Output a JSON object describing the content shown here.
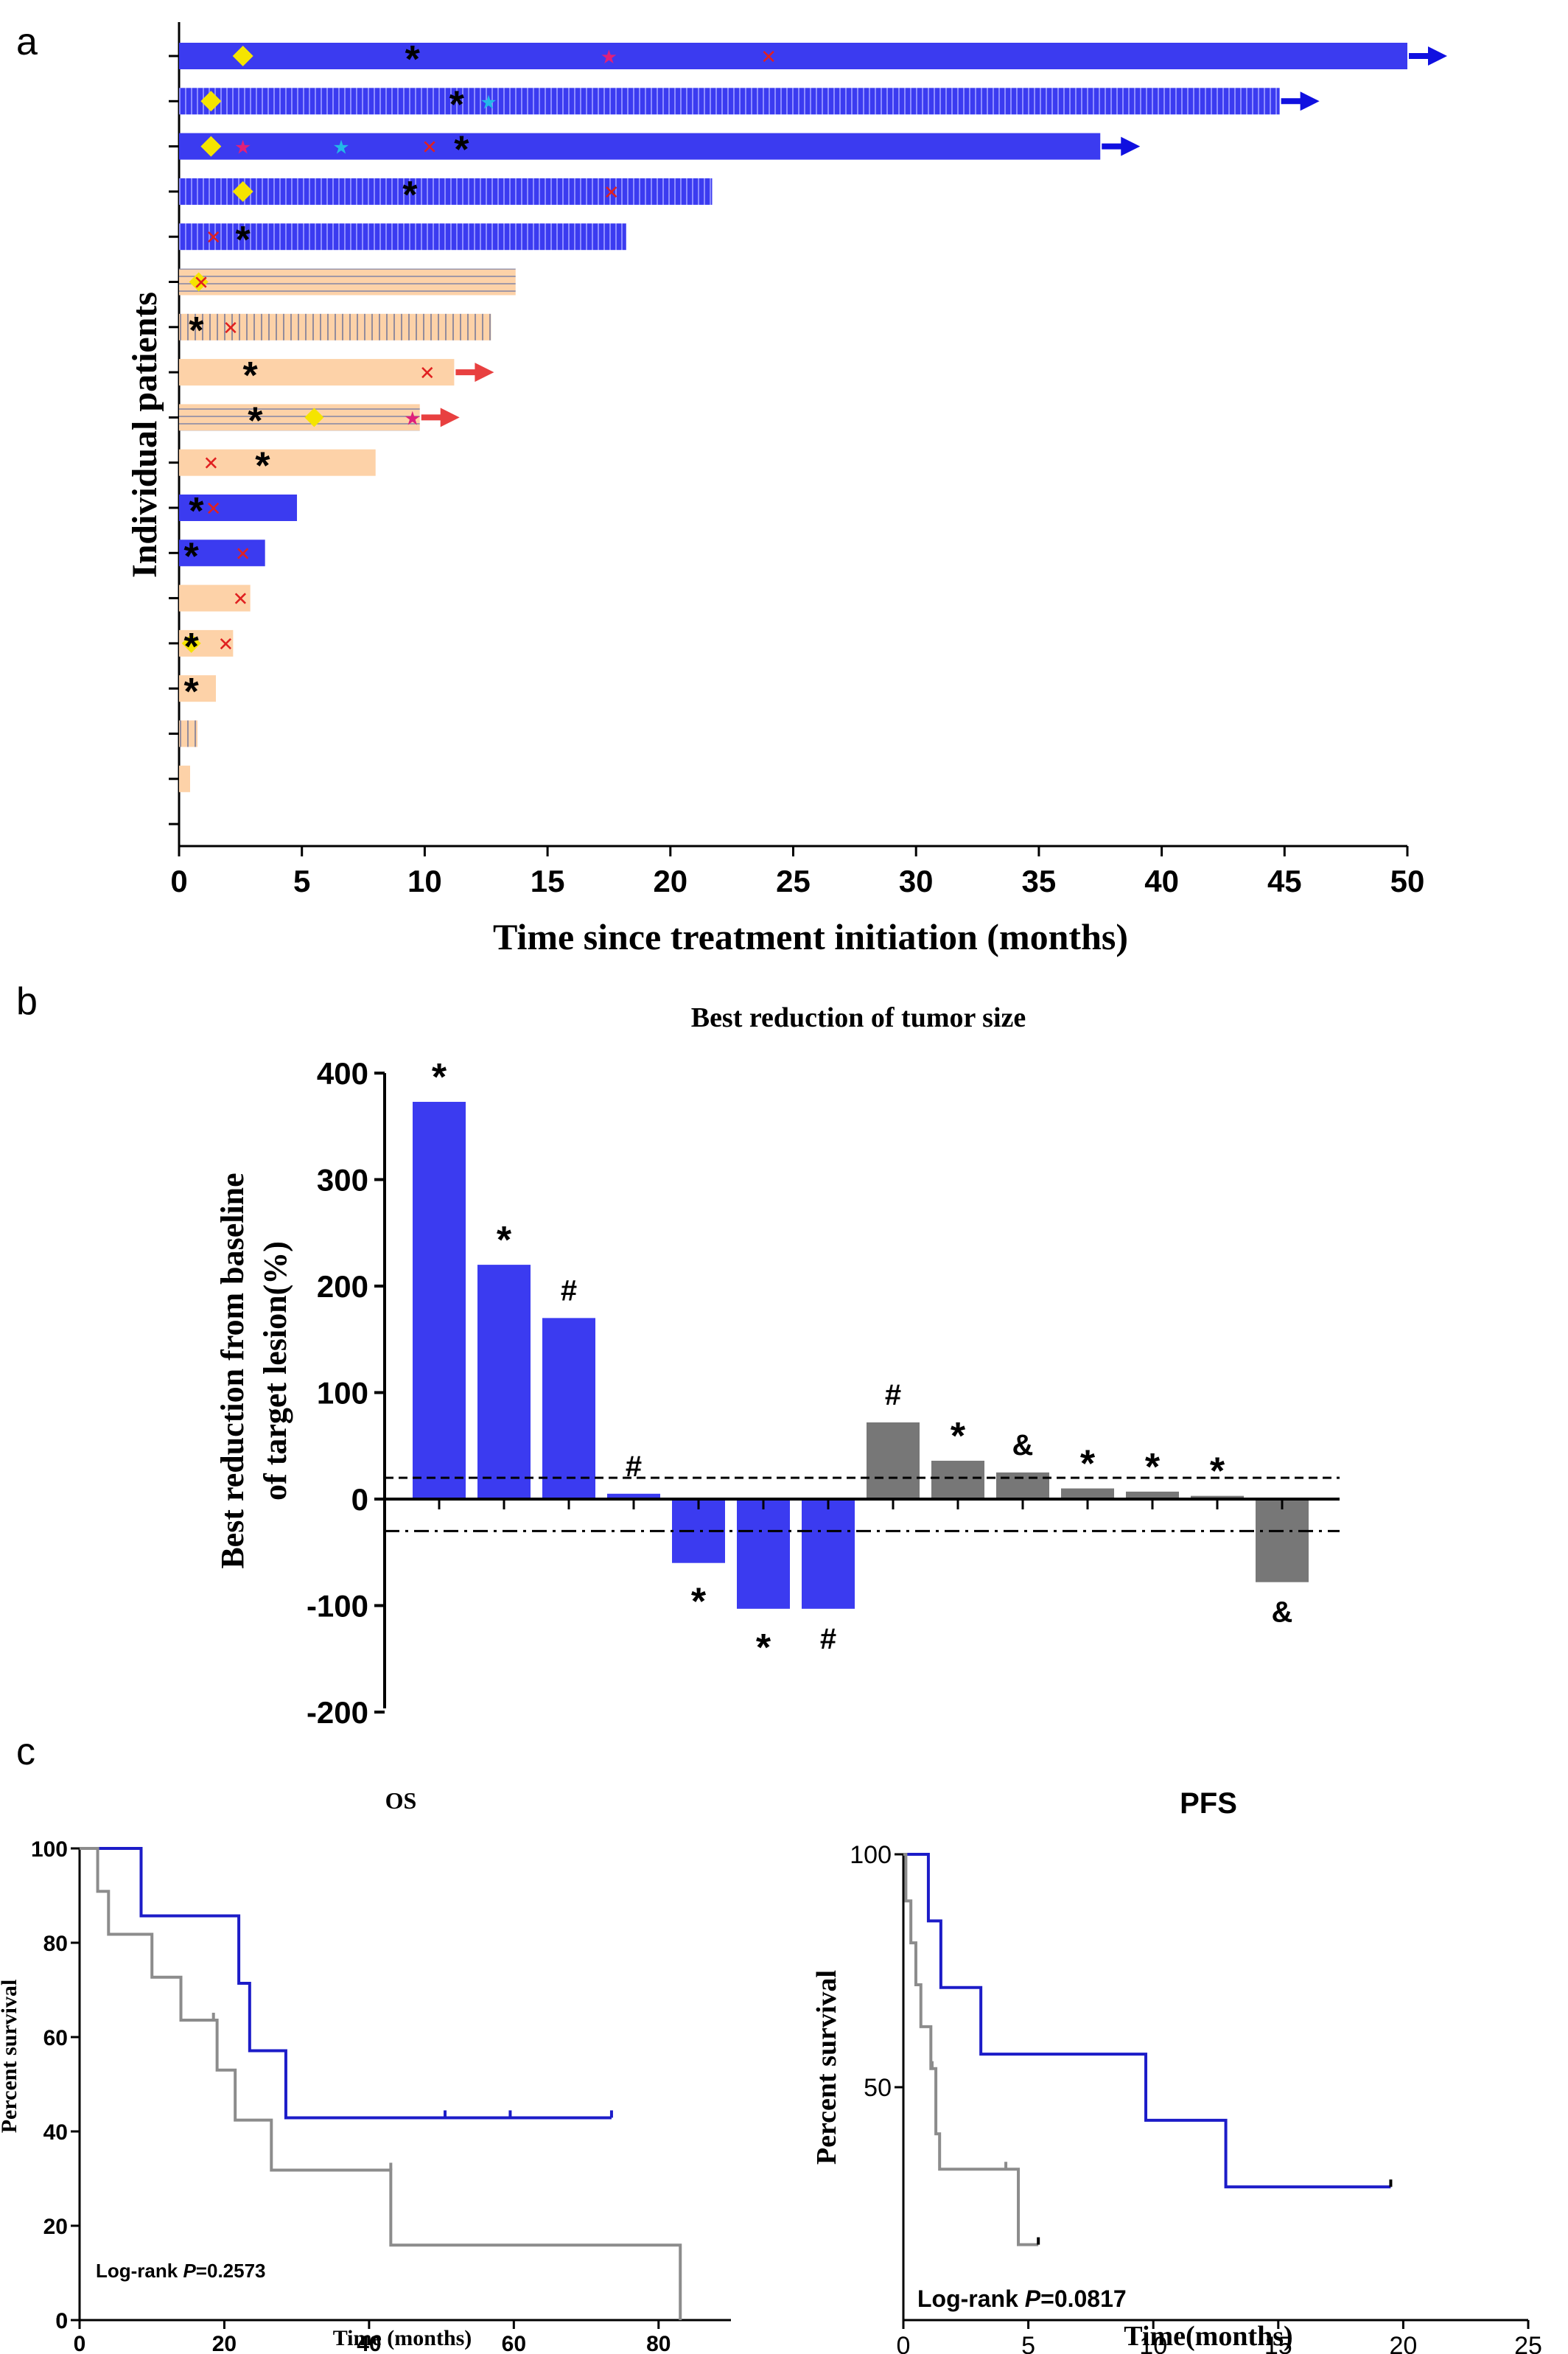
{
  "panel_labels": {
    "a": "a",
    "b": "b",
    "c": "c"
  },
  "colors": {
    "blue": "#3b3bf0",
    "blue_dark": "#1010e0",
    "peach": "#fdd2a8",
    "gray_bar": "#777777",
    "red_x": "#e02020",
    "pink_star": "#e0207a",
    "cyan_star": "#22b8e8",
    "yellow_diamond": "#f5e400",
    "arrow_red": "#e84040",
    "km_blue": "#1c1cc8",
    "km_gray": "#8c8c8c"
  },
  "chart_data": [
    {
      "id": "a",
      "type": "bar",
      "orientation": "horizontal",
      "xlabel": "Time since treatment initiation (months)",
      "ylabel": "Individual patients",
      "xlim": [
        0,
        50
      ],
      "xticks": [
        0,
        5,
        10,
        15,
        20,
        25,
        30,
        35,
        40,
        45,
        50
      ],
      "patients": [
        {
          "value": 50,
          "color": "blue",
          "hatch": "none",
          "arrow": true,
          "markers": [
            {
              "type": "diamond",
              "x": 2.6
            },
            {
              "type": "asterisk",
              "x": 9.5
            },
            {
              "type": "pink_star",
              "x": 17.5
            },
            {
              "type": "red_x",
              "x": 24.0
            }
          ]
        },
        {
          "value": 44.8,
          "color": "blue",
          "hatch": "vertical",
          "arrow": true,
          "markers": [
            {
              "type": "diamond",
              "x": 1.3
            },
            {
              "type": "asterisk",
              "x": 11.3
            },
            {
              "type": "cyan_star",
              "x": 12.6
            }
          ]
        },
        {
          "value": 37.5,
          "color": "blue",
          "hatch": "none",
          "arrow": true,
          "markers": [
            {
              "type": "diamond",
              "x": 1.3
            },
            {
              "type": "pink_star",
              "x": 2.6
            },
            {
              "type": "cyan_star",
              "x": 6.6
            },
            {
              "type": "red_x",
              "x": 10.2
            },
            {
              "type": "asterisk",
              "x": 11.5
            }
          ]
        },
        {
          "value": 21.7,
          "color": "blue",
          "hatch": "vertical",
          "arrow": false,
          "markers": [
            {
              "type": "diamond",
              "x": 2.6
            },
            {
              "type": "asterisk",
              "x": 9.4
            },
            {
              "type": "red_x",
              "x": 17.6
            }
          ]
        },
        {
          "value": 18.2,
          "color": "blue",
          "hatch": "vertical",
          "arrow": false,
          "markers": [
            {
              "type": "red_x",
              "x": 1.4
            },
            {
              "type": "asterisk",
              "x": 2.6
            }
          ]
        },
        {
          "value": 13.7,
          "color": "peach",
          "hatch": "horizontal",
          "arrow": false,
          "markers": [
            {
              "type": "yellow_circle",
              "x": 0.8
            },
            {
              "type": "red_x",
              "x": 0.9
            }
          ]
        },
        {
          "value": 12.7,
          "color": "peach",
          "hatch": "vertical",
          "arrow": false,
          "markers": [
            {
              "type": "asterisk",
              "x": 0.7
            },
            {
              "type": "red_x",
              "x": 2.1
            }
          ]
        },
        {
          "value": 11.2,
          "color": "peach",
          "hatch": "none",
          "arrow": true,
          "markers": [
            {
              "type": "asterisk",
              "x": 2.9
            },
            {
              "type": "red_x",
              "x": 10.1
            }
          ]
        },
        {
          "value": 9.8,
          "color": "peach",
          "hatch": "horizontal",
          "arrow": true,
          "markers": [
            {
              "type": "asterisk",
              "x": 3.1
            },
            {
              "type": "yellow_circle",
              "x": 5.5
            },
            {
              "type": "pink_star",
              "x": 9.5
            }
          ]
        },
        {
          "value": 8.0,
          "color": "peach",
          "hatch": "none",
          "arrow": false,
          "markers": [
            {
              "type": "red_x",
              "x": 1.3
            },
            {
              "type": "asterisk",
              "x": 3.4
            }
          ]
        },
        {
          "value": 4.8,
          "color": "blue",
          "hatch": "none",
          "arrow": false,
          "markers": [
            {
              "type": "asterisk",
              "x": 0.7
            },
            {
              "type": "red_x",
              "x": 1.4
            }
          ]
        },
        {
          "value": 3.5,
          "color": "blue",
          "hatch": "none",
          "arrow": false,
          "markers": [
            {
              "type": "asterisk",
              "x": 0.5
            },
            {
              "type": "red_x",
              "x": 2.6
            }
          ]
        },
        {
          "value": 2.9,
          "color": "peach",
          "hatch": "none",
          "arrow": false,
          "markers": [
            {
              "type": "red_x",
              "x": 2.5
            }
          ]
        },
        {
          "value": 2.2,
          "color": "peach",
          "hatch": "none",
          "arrow": false,
          "markers": [
            {
              "type": "yellow_circle",
              "x": 0.5
            },
            {
              "type": "asterisk",
              "x": 0.5
            },
            {
              "type": "red_x",
              "x": 1.9
            }
          ]
        },
        {
          "value": 1.5,
          "color": "peach",
          "hatch": "none",
          "arrow": false,
          "markers": [
            {
              "type": "asterisk",
              "x": 0.5
            }
          ]
        },
        {
          "value": 0.75,
          "color": "peach",
          "hatch": "vertical",
          "arrow": false,
          "markers": []
        },
        {
          "value": 0.45,
          "color": "peach",
          "hatch": "none",
          "arrow": false,
          "markers": []
        },
        {
          "value": 0,
          "color": "peach",
          "hatch": "none",
          "arrow": false,
          "markers": []
        }
      ]
    },
    {
      "id": "b",
      "type": "bar",
      "title": "Best reduction of tumor size",
      "ylabel_line1": "Best reduction from baseline",
      "ylabel_line2": "of target lesion(%)",
      "ylim": [
        -200,
        400
      ],
      "yticks": [
        -200,
        -100,
        0,
        100,
        200,
        300,
        400
      ],
      "reference_lines": [
        20,
        -30
      ],
      "values": [
        373,
        220,
        170,
        5,
        -60,
        -103,
        -103,
        72,
        36,
        25,
        10,
        7,
        3,
        -78
      ],
      "colors": [
        "blue",
        "blue",
        "blue",
        "blue",
        "blue",
        "blue",
        "blue",
        "gray",
        "gray",
        "gray",
        "gray",
        "gray",
        "gray",
        "gray"
      ],
      "labels": [
        "*",
        "*",
        "#",
        "#",
        "*",
        "*",
        "#",
        "#",
        "*",
        "&",
        "*",
        "*",
        "*",
        "&"
      ]
    },
    {
      "id": "c-os",
      "type": "line",
      "subtype": "kaplan-meier",
      "title": "OS",
      "xlabel": "Time (months)",
      "ylabel": "Percent survival",
      "xlim": [
        0,
        90
      ],
      "xticks": [
        0,
        20,
        40,
        60,
        80
      ],
      "ylim": [
        0,
        100
      ],
      "yticks": [
        0,
        20,
        40,
        60,
        80,
        100
      ],
      "annotation": "Log-rank P=0.2573",
      "series": [
        {
          "color": "km_blue",
          "x": [
            0,
            8.5,
            8.5,
            22,
            22,
            23.5,
            23.5,
            28.5,
            28.5,
            73.5
          ],
          "y": [
            100,
            100,
            85.7,
            85.7,
            71.4,
            71.4,
            57.1,
            57.1,
            42.9,
            42.9
          ],
          "censors": [
            [
              50.5,
              42.9
            ],
            [
              59.5,
              42.9
            ],
            [
              73.5,
              42.9
            ]
          ]
        },
        {
          "color": "km_gray",
          "x": [
            0,
            2.5,
            2.5,
            4,
            4,
            10,
            10,
            14,
            14,
            19,
            19,
            21.5,
            21.5,
            26.5,
            26.5,
            43,
            43,
            83,
            83
          ],
          "y": [
            100,
            100,
            90.9,
            90.9,
            81.8,
            81.8,
            72.7,
            72.7,
            63.6,
            63.6,
            53.0,
            53.0,
            42.4,
            42.4,
            31.8,
            31.8,
            15.9,
            15.9,
            0
          ],
          "censors": [
            [
              18.5,
              63.6
            ],
            [
              43,
              31.8
            ]
          ]
        }
      ]
    },
    {
      "id": "c-pfs",
      "type": "line",
      "subtype": "kaplan-meier",
      "title": "PFS",
      "xlabel": "Time(months)",
      "ylabel": "Percent survival",
      "xlim": [
        0,
        25
      ],
      "xticks": [
        0,
        5,
        10,
        15,
        20,
        25
      ],
      "ylim": [
        0,
        100
      ],
      "yticks": [
        50,
        100
      ],
      "annotation": "Log-rank P=0.0817",
      "series": [
        {
          "color": "km_blue",
          "x": [
            0,
            1.0,
            1.0,
            1.5,
            1.5,
            3.1,
            3.1,
            9.7,
            9.7,
            12.9,
            12.9,
            19.5
          ],
          "y": [
            100,
            100,
            85.7,
            85.7,
            71.4,
            71.4,
            57.1,
            57.1,
            42.9,
            42.9,
            28.6,
            28.6
          ],
          "censors": [
            [
              19.5,
              28.6
            ]
          ]
        },
        {
          "color": "km_gray",
          "x": [
            0,
            0.1,
            0.1,
            0.3,
            0.3,
            0.5,
            0.5,
            0.7,
            0.7,
            1.1,
            1.1,
            1.3,
            1.3,
            1.45,
            1.45,
            4.6,
            4.6,
            5.4
          ],
          "y": [
            100,
            100,
            90,
            90,
            81,
            81,
            72,
            72,
            63,
            63,
            54,
            54,
            40,
            40,
            32.4,
            32.4,
            16.2,
            16.2
          ],
          "censors": [
            [
              1.15,
              54
            ],
            [
              4.1,
              32.4
            ],
            [
              5.4,
              16.2
            ]
          ]
        }
      ]
    }
  ]
}
